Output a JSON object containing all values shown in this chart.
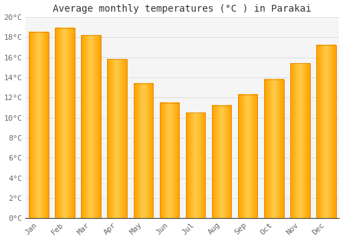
{
  "title": "Average monthly temperatures (°C ) in Parakai",
  "months": [
    "Jan",
    "Feb",
    "Mar",
    "Apr",
    "May",
    "Jun",
    "Jul",
    "Aug",
    "Sep",
    "Oct",
    "Nov",
    "Dec"
  ],
  "values": [
    18.5,
    18.9,
    18.2,
    15.8,
    13.4,
    11.5,
    10.5,
    11.2,
    12.3,
    13.8,
    15.4,
    17.2
  ],
  "bar_color_light": "#FFD966",
  "bar_color_main": "#FFA500",
  "bar_color_dark": "#E07B00",
  "background_color": "#FFFFFF",
  "plot_bg_color": "#F5F5F5",
  "grid_color": "#DDDDDD",
  "ylim": [
    0,
    20
  ],
  "yticks": [
    0,
    2,
    4,
    6,
    8,
    10,
    12,
    14,
    16,
    18,
    20
  ],
  "ytick_labels": [
    "0°C",
    "2°C",
    "4°C",
    "6°C",
    "8°C",
    "10°C",
    "12°C",
    "14°C",
    "16°C",
    "18°C",
    "20°C"
  ],
  "title_fontsize": 10,
  "tick_fontsize": 8,
  "font_family": "monospace",
  "bar_width": 0.75
}
